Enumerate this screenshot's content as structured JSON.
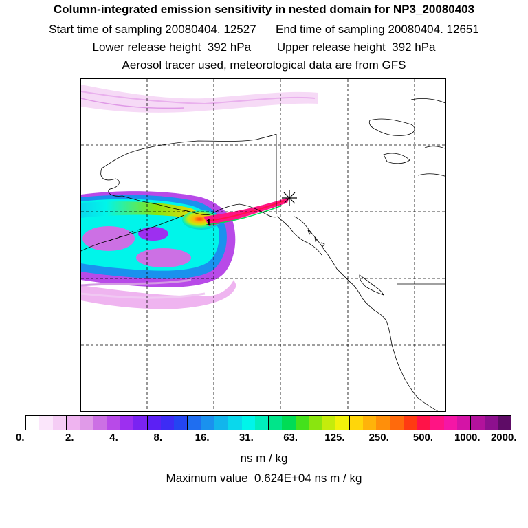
{
  "titles": {
    "main": "Column-integrated emission sensitivity in nested domain for NP3_20080403",
    "sampling": "Start time of sampling 20080404. 12527      End time of sampling 20080404. 12651",
    "release": "Lower release height  392 hPa        Upper release height  392 hPa",
    "info": "Aerosol tracer used, meteorological data are from GFS"
  },
  "colorbar": {
    "colors": [
      "#ffffff",
      "#fbe6fb",
      "#f5cdf5",
      "#efb4f0",
      "#e09ae8",
      "#cc70e4",
      "#b84ae8",
      "#9d2ff0",
      "#7a23f2",
      "#5c20f4",
      "#3d2cf5",
      "#2445f2",
      "#1f6ef0",
      "#1a91ee",
      "#12b5ec",
      "#0ad8ec",
      "#00f5ea",
      "#00eebd",
      "#00e58a",
      "#00dc55",
      "#44e11c",
      "#8ae50f",
      "#c4ec0c",
      "#f2f20a",
      "#ffd60a",
      "#ffb30a",
      "#ff8f0a",
      "#ff6a0c",
      "#ff3b12",
      "#ff1348",
      "#ff1484",
      "#f516a6",
      "#d414a6",
      "#b2129c",
      "#8d108e",
      "#5e0c66"
    ],
    "ticks": [
      "0.",
      "2.",
      "4.",
      "8.",
      "16.",
      "31.",
      "63.",
      "125.",
      "250.",
      "500.",
      "1000.",
      "2000."
    ],
    "units": "ns m / kg"
  },
  "max_value_text": "Maximum value  0.624E+04 ns m / kg",
  "map": {
    "icons": [
      "release-point-star-icon"
    ],
    "grid": "dashed"
  }
}
